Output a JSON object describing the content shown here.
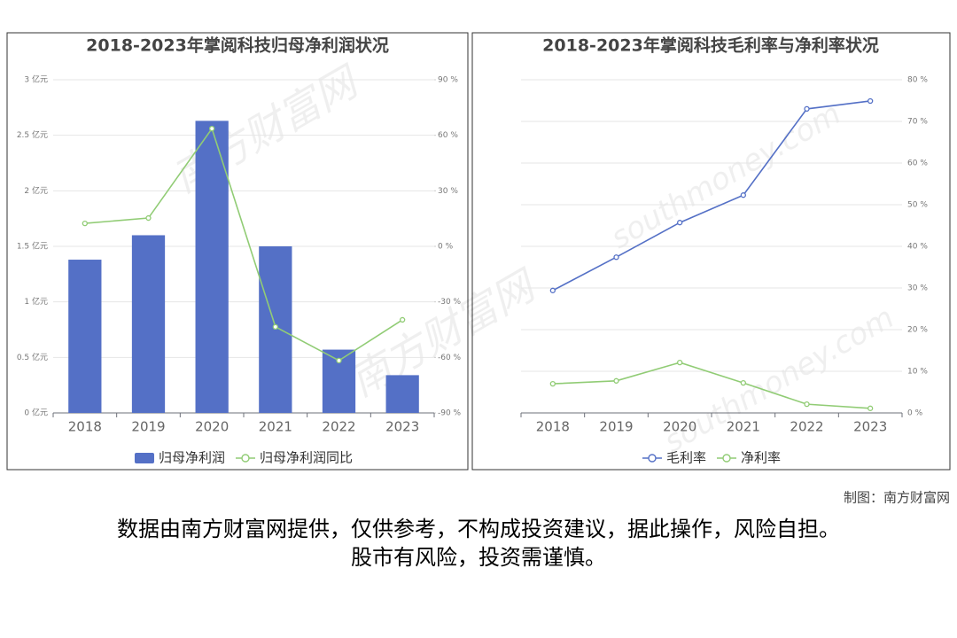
{
  "chart_data": [
    {
      "type": "bar",
      "title": "2018-2023年掌阅科技归母净利润状况",
      "categories": [
        "2018",
        "2019",
        "2020",
        "2021",
        "2022",
        "2023"
      ],
      "series": [
        {
          "name": "归母净利润",
          "type": "bar",
          "color": "#5470c6",
          "values": [
            1.38,
            1.6,
            2.63,
            1.5,
            0.57,
            0.34
          ]
        },
        {
          "name": "归母净利润同比",
          "type": "line",
          "axis": "y2",
          "color": "#91cc75",
          "values": [
            12.4,
            15.3,
            63.6,
            -43.5,
            -61.7,
            -39.7
          ]
        }
      ],
      "ylim": [
        0,
        3
      ],
      "yticks": [
        {
          "value": 0,
          "label": "0 亿元"
        },
        {
          "value": 0.5,
          "label": "0.5 亿元"
        },
        {
          "value": 1,
          "label": "1 亿元"
        },
        {
          "value": 1.5,
          "label": "1.5 亿元"
        },
        {
          "value": 2,
          "label": "2 亿元"
        },
        {
          "value": 2.5,
          "label": "2.5 亿元"
        },
        {
          "value": 3,
          "label": "3 亿元"
        }
      ],
      "y2lim": [
        -90,
        90
      ],
      "y2ticks": [
        {
          "value": -90,
          "label": "-90 %"
        },
        {
          "value": -60,
          "label": "-60 %"
        },
        {
          "value": -30,
          "label": "-30 %"
        },
        {
          "value": 0,
          "label": "0 %"
        },
        {
          "value": 30,
          "label": "30 %"
        },
        {
          "value": 60,
          "label": "60 %"
        },
        {
          "value": 90,
          "label": "90 %"
        }
      ],
      "grid": true,
      "legend": "bottom"
    },
    {
      "type": "line",
      "title": "2018-2023年掌阅科技毛利率与净利率状况",
      "categories": [
        "2018",
        "2019",
        "2020",
        "2021",
        "2022",
        "2023"
      ],
      "series": [
        {
          "name": "毛利率",
          "color": "#5470c6",
          "values": [
            29.4,
            37.4,
            45.7,
            52.3,
            73.0,
            74.9
          ]
        },
        {
          "name": "净利率",
          "color": "#91cc75",
          "values": [
            7.0,
            7.7,
            12.1,
            7.2,
            2.1,
            1.1
          ]
        }
      ],
      "ylim": [
        0,
        80
      ],
      "yticks": [
        {
          "value": 0,
          "label": "0 %"
        },
        {
          "value": 10,
          "label": "10 %"
        },
        {
          "value": 20,
          "label": "20 %"
        },
        {
          "value": 30,
          "label": "30 %"
        },
        {
          "value": 40,
          "label": "40 %"
        },
        {
          "value": 50,
          "label": "50 %"
        },
        {
          "value": 60,
          "label": "60 %"
        },
        {
          "value": 70,
          "label": "70 %"
        },
        {
          "value": 80,
          "label": "80 %"
        }
      ],
      "yaxis_side": "right",
      "grid": true,
      "legend": "bottom"
    }
  ],
  "watermark": [
    "南方财富网",
    "southmoney.com"
  ],
  "footer": {
    "credit": "制图：南方财富网",
    "disclaimer": [
      "数据由南方财富网提供，仅供参考，不构成投资建议，据此操作，风险自担。",
      "股市有风险，投资需谨慎。"
    ]
  }
}
